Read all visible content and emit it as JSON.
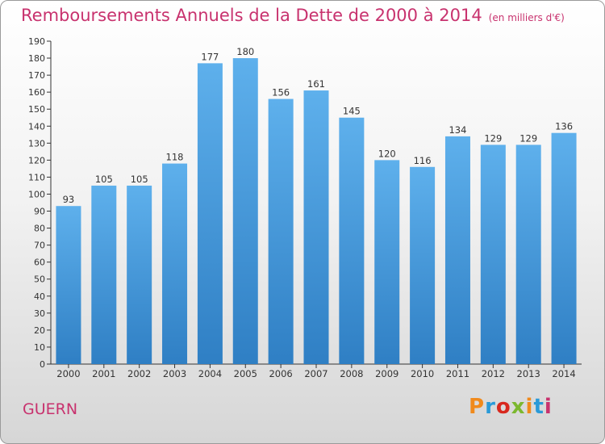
{
  "page": {
    "title": "Remboursements Annuels de la Dette de 2000 à 2014",
    "unit_note": "(en milliers d'€)",
    "location": "GUERN",
    "brand": "Proxiti",
    "brand_colors": [
      "#f08a1c",
      "#2a9ad8",
      "#d8281e",
      "#7cb82f",
      "#f08a1c",
      "#2a9ad8",
      "#c8326e"
    ]
  },
  "chart_data": {
    "type": "bar",
    "title": "Remboursements Annuels de la Dette de 2000 à 2014",
    "subtitle": "(en milliers d'€)",
    "xlabel": "",
    "ylabel": "",
    "categories": [
      "2000",
      "2001",
      "2002",
      "2003",
      "2004",
      "2005",
      "2006",
      "2007",
      "2008",
      "2009",
      "2010",
      "2011",
      "2012",
      "2013",
      "2014"
    ],
    "values": [
      93,
      105,
      105,
      118,
      177,
      180,
      156,
      161,
      145,
      120,
      116,
      134,
      129,
      129,
      136
    ],
    "ylim": [
      0,
      190
    ],
    "yticks": [
      0,
      10,
      20,
      30,
      40,
      50,
      60,
      70,
      80,
      90,
      100,
      110,
      120,
      130,
      140,
      150,
      160,
      170,
      180,
      190
    ],
    "grid": false,
    "legend": "none",
    "bar_color": "#4f9fdf",
    "title_color": "#c8326e"
  }
}
